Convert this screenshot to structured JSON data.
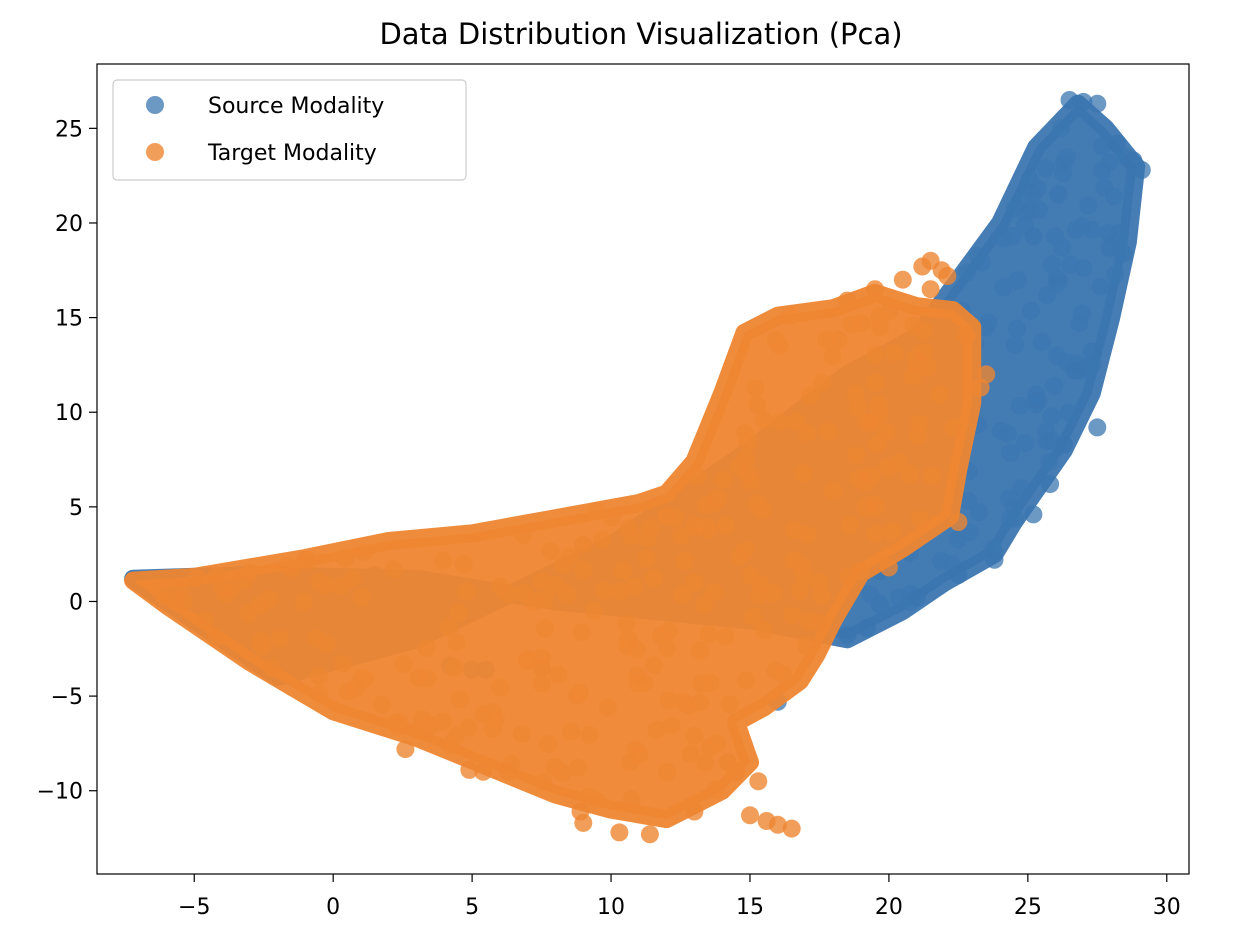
{
  "chart_data": {
    "type": "scatter",
    "title": "Data Distribution Visualization (Pca)",
    "xlabel": "",
    "ylabel": "",
    "xlim": [
      -8.5,
      30.8
    ],
    "ylim": [
      -14.4,
      28.4
    ],
    "xticks": [
      -5,
      0,
      5,
      10,
      15,
      20,
      25,
      30
    ],
    "yticks": [
      -10,
      -5,
      0,
      5,
      10,
      15,
      20,
      25
    ],
    "grid": false,
    "legend_position": "top-left",
    "series": [
      {
        "name": "Source Modality",
        "color": "#3b76b0",
        "alpha": 0.75,
        "shape": [
          [
            -7.2,
            1.2
          ],
          [
            -3,
            1.4
          ],
          [
            3,
            1.2
          ],
          [
            8,
            0
          ],
          [
            15,
            -1
          ],
          [
            18.5,
            -2
          ],
          [
            20.5,
            -0.5
          ],
          [
            22,
            1
          ],
          [
            23.8,
            2.5
          ],
          [
            24.5,
            4.2
          ],
          [
            26.3,
            8
          ],
          [
            27.3,
            11
          ],
          [
            28,
            15
          ],
          [
            28.6,
            19
          ],
          [
            28.9,
            23
          ],
          [
            27.8,
            25
          ],
          [
            26.8,
            26.3
          ],
          [
            25.3,
            24
          ],
          [
            24,
            20
          ],
          [
            22.5,
            17
          ],
          [
            21,
            14
          ],
          [
            18.5,
            12
          ],
          [
            15,
            8
          ],
          [
            10,
            3
          ],
          [
            3,
            -2
          ],
          [
            -2,
            -4
          ],
          [
            -7.2,
            1.2
          ]
        ],
        "outliers": [
          [
            26.5,
            26.5
          ],
          [
            27,
            26.4
          ],
          [
            27.5,
            26.3
          ],
          [
            28.2,
            24.2
          ],
          [
            28.8,
            23.3
          ],
          [
            29.1,
            22.8
          ],
          [
            26.1,
            21.5
          ],
          [
            25.2,
            19.3
          ],
          [
            27.3,
            13.2
          ],
          [
            26.7,
            12.2
          ],
          [
            27.5,
            9.2
          ],
          [
            26.3,
            8.3
          ],
          [
            25.8,
            6.2
          ],
          [
            25.2,
            4.6
          ],
          [
            23.8,
            2.2
          ],
          [
            22.5,
            1.4
          ],
          [
            21,
            0.2
          ],
          [
            19.2,
            -1.4
          ],
          [
            18.5,
            -1.8
          ],
          [
            5,
            -3.6
          ],
          [
            4.2,
            -3.4
          ],
          [
            5.5,
            -3.6
          ],
          [
            1.5,
            1.4
          ],
          [
            -2.3,
            -1.4
          ],
          [
            16,
            -5.3
          ]
        ]
      },
      {
        "name": "Target Modality",
        "color": "#ee8632",
        "alpha": 0.8,
        "shape": [
          [
            -7.2,
            1.1
          ],
          [
            -5,
            1.3
          ],
          [
            -1,
            2.3
          ],
          [
            2,
            3.2
          ],
          [
            5,
            3.6
          ],
          [
            8,
            4.4
          ],
          [
            11,
            5.2
          ],
          [
            12,
            5.7
          ],
          [
            13,
            7.4
          ],
          [
            14,
            11
          ],
          [
            14.8,
            14.2
          ],
          [
            16,
            15.1
          ],
          [
            18,
            15.5
          ],
          [
            19.5,
            16.3
          ],
          [
            21,
            15.6
          ],
          [
            22.3,
            15.4
          ],
          [
            23,
            14.5
          ],
          [
            23,
            10.5
          ],
          [
            22.5,
            7
          ],
          [
            22.2,
            4.5
          ],
          [
            20.5,
            2.8
          ],
          [
            19,
            1.5
          ],
          [
            18,
            -1
          ],
          [
            17.4,
            -2.8
          ],
          [
            16.8,
            -4.2
          ],
          [
            15.5,
            -5.6
          ],
          [
            14.5,
            -6.4
          ],
          [
            15,
            -8.5
          ],
          [
            14,
            -10
          ],
          [
            12,
            -11.5
          ],
          [
            10,
            -11
          ],
          [
            8,
            -10.2
          ],
          [
            6,
            -9
          ],
          [
            3,
            -7.2
          ],
          [
            0,
            -5.8
          ],
          [
            -3,
            -3.2
          ],
          [
            -6,
            -0.2
          ],
          [
            -7.2,
            1.1
          ]
        ],
        "outliers": [
          [
            2.6,
            -7.8
          ],
          [
            4.9,
            -8.9
          ],
          [
            5.4,
            -9
          ],
          [
            6.3,
            -9
          ],
          [
            8.9,
            -11.1
          ],
          [
            9,
            -11.7
          ],
          [
            10.3,
            -12.2
          ],
          [
            11.4,
            -12.3
          ],
          [
            13,
            -11.1
          ],
          [
            15,
            -11.3
          ],
          [
            15.3,
            -9.5
          ],
          [
            15.6,
            -11.6
          ],
          [
            16,
            -11.8
          ],
          [
            16.5,
            -12
          ],
          [
            14.5,
            -9
          ],
          [
            14.2,
            -8.5
          ],
          [
            21.2,
            17.7
          ],
          [
            21.5,
            18
          ],
          [
            21.9,
            17.5
          ],
          [
            22.1,
            17.2
          ],
          [
            21.5,
            16.5
          ],
          [
            20.5,
            17
          ],
          [
            19.5,
            16.5
          ],
          [
            18.5,
            15.9
          ],
          [
            20,
            1.8
          ],
          [
            22.5,
            4.2
          ],
          [
            23.3,
            11.3
          ],
          [
            23.5,
            12
          ],
          [
            7.5,
            -3.5
          ],
          [
            9,
            3
          ],
          [
            12,
            4.5
          ],
          [
            13,
            4
          ],
          [
            -1,
            2.2
          ],
          [
            -3,
            1.5
          ]
        ]
      }
    ]
  }
}
